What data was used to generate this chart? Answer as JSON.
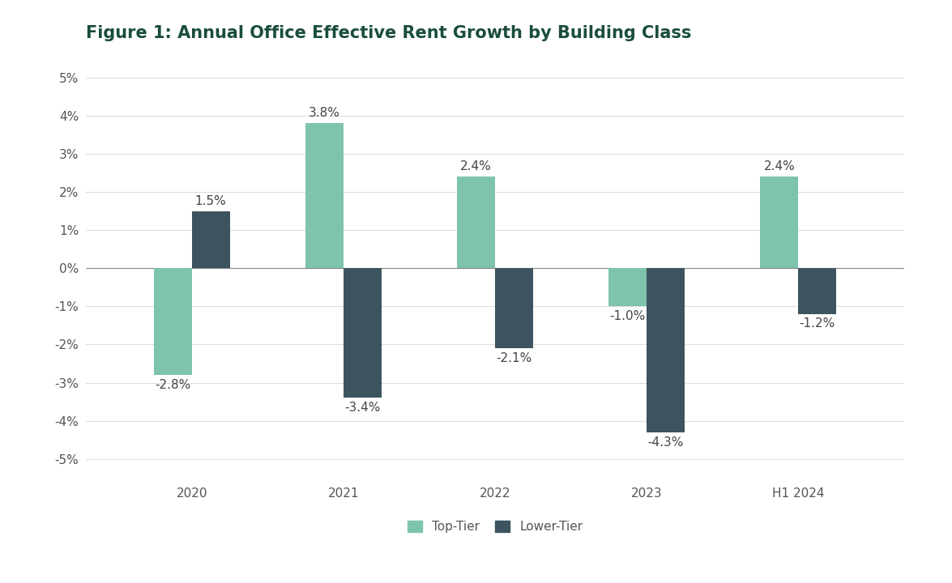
{
  "title": "Figure 1: Annual Office Effective Rent Growth by Building Class",
  "categories": [
    "2020",
    "2021",
    "2022",
    "2023",
    "H1 2024"
  ],
  "top_tier": [
    -2.8,
    3.8,
    2.4,
    -1.0,
    2.4
  ],
  "lower_tier": [
    1.5,
    -3.4,
    -2.1,
    -4.3,
    -1.2
  ],
  "top_tier_color": "#7EC4AD",
  "lower_tier_color": "#3D5460",
  "title_color": "#1A4E3A",
  "background_color": "#FFFFFF",
  "ylim": [
    -5.5,
    5.5
  ],
  "yticks": [
    -5,
    -4,
    -3,
    -2,
    -1,
    0,
    1,
    2,
    3,
    4,
    5
  ],
  "bar_width": 0.25,
  "legend_top_tier": "Top-Tier",
  "legend_lower_tier": "Lower-Tier",
  "title_fontsize": 15,
  "tick_fontsize": 11,
  "label_fontsize": 11,
  "legend_fontsize": 11
}
